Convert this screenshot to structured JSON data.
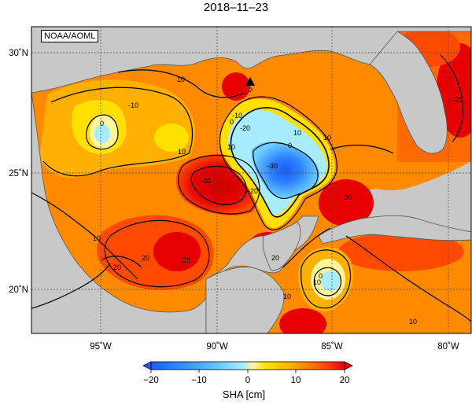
{
  "title": "2018–11–23",
  "credit": "NOAA/AOML",
  "map": {
    "lat_labels": [
      "30˚N",
      "25˚N",
      "20˚N"
    ],
    "lon_labels": [
      "95˚W",
      "90˚W",
      "85˚W",
      "80˚W"
    ],
    "contour_labels": [
      "10",
      "-10",
      "0",
      "10",
      "-10",
      "-20",
      "0",
      "10",
      "0",
      "-30",
      "-30",
      "10",
      "10",
      "-20",
      "10",
      "20",
      "20",
      "20",
      "20",
      "10",
      "0",
      "10",
      "-20",
      "20",
      "10"
    ],
    "land_color": "#c8c8c8",
    "marker": "black triangle"
  },
  "colorbar": {
    "label": "SHA [cm]",
    "ticks": [
      "−20",
      "−10",
      "0",
      "10",
      "20"
    ],
    "range": [
      -20,
      20
    ],
    "colors": [
      "#1e5aff",
      "#2d82ff",
      "#4aa8ff",
      "#6fd0ff",
      "#a7ecff",
      "#fff59a",
      "#ffe000",
      "#ffb000",
      "#ff7a00",
      "#ff4a00",
      "#e60000"
    ]
  }
}
